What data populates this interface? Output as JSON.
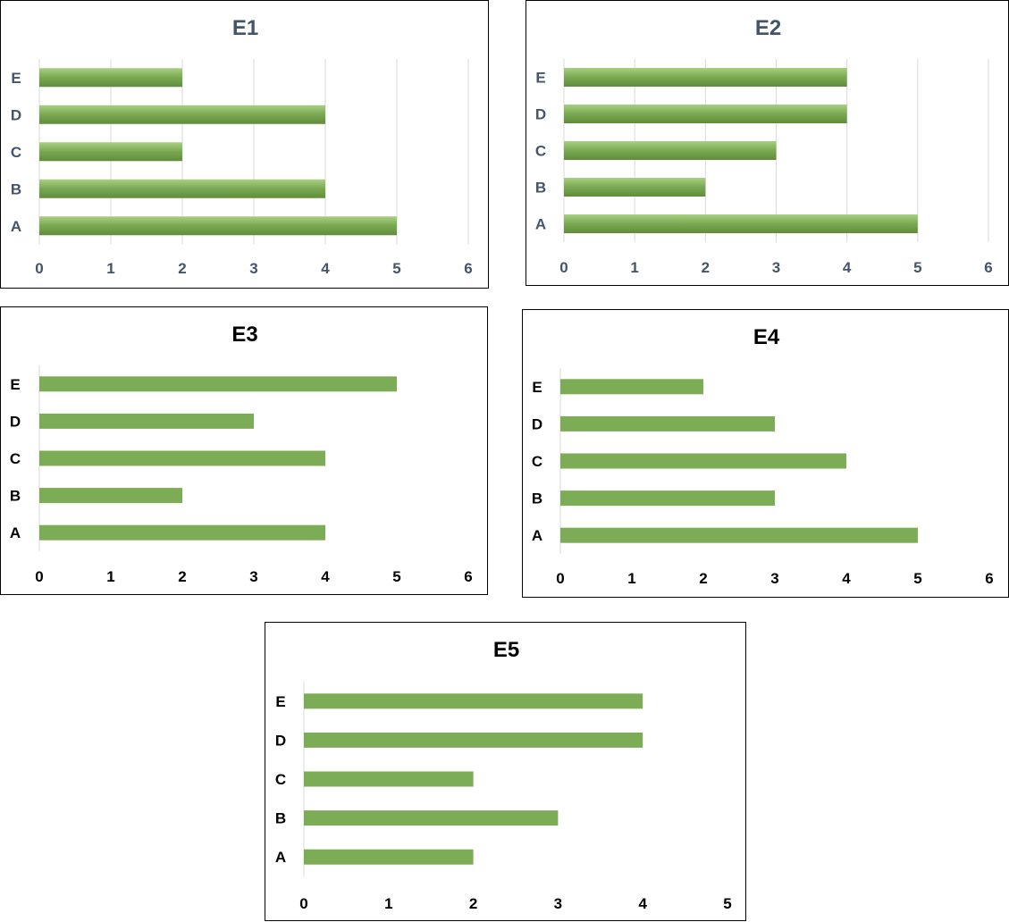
{
  "chart_data": [
    {
      "type": "bar",
      "orientation": "horizontal",
      "title": "E1",
      "categories": [
        "A",
        "B",
        "C",
        "D",
        "E"
      ],
      "values": [
        5,
        4,
        2,
        4,
        2
      ],
      "xlim": [
        0,
        6
      ],
      "xticks": [
        "0",
        "1",
        "2",
        "3",
        "4",
        "5",
        "6"
      ],
      "grid": true,
      "bar_style": "gradient",
      "bar_color": "#7aa852",
      "text_color": "#44546a"
    },
    {
      "type": "bar",
      "orientation": "horizontal",
      "title": "E2",
      "categories": [
        "A",
        "B",
        "C",
        "D",
        "E"
      ],
      "values": [
        5,
        2,
        3,
        4,
        4
      ],
      "xlim": [
        0,
        6
      ],
      "xticks": [
        "0",
        "1",
        "2",
        "3",
        "4",
        "5",
        "6"
      ],
      "grid": true,
      "bar_style": "gradient",
      "bar_color": "#7aa852",
      "text_color": "#44546a"
    },
    {
      "type": "bar",
      "orientation": "horizontal",
      "title": "E3",
      "categories": [
        "A",
        "B",
        "C",
        "D",
        "E"
      ],
      "values": [
        4,
        2,
        4,
        3,
        5
      ],
      "xlim": [
        0,
        6
      ],
      "xticks": [
        "0",
        "1",
        "2",
        "3",
        "4",
        "5",
        "6"
      ],
      "grid": false,
      "bar_style": "flat",
      "bar_color": "#7cac55",
      "text_color": "#000000"
    },
    {
      "type": "bar",
      "orientation": "horizontal",
      "title": "E4",
      "categories": [
        "A",
        "B",
        "C",
        "D",
        "E"
      ],
      "values": [
        5,
        3,
        4,
        3,
        2
      ],
      "xlim": [
        0,
        6
      ],
      "xticks": [
        "0",
        "1",
        "2",
        "3",
        "4",
        "5",
        "6"
      ],
      "grid": false,
      "bar_style": "flat",
      "bar_color": "#7cac55",
      "text_color": "#000000"
    },
    {
      "type": "bar",
      "orientation": "horizontal",
      "title": "E5",
      "categories": [
        "A",
        "B",
        "C",
        "D",
        "E"
      ],
      "values": [
        2,
        3,
        2,
        4,
        4
      ],
      "xlim": [
        0,
        5
      ],
      "xticks": [
        "0",
        "1",
        "2",
        "3",
        "4",
        "5"
      ],
      "grid": false,
      "bar_style": "flat",
      "bar_color": "#7cac55",
      "text_color": "#000000"
    }
  ]
}
